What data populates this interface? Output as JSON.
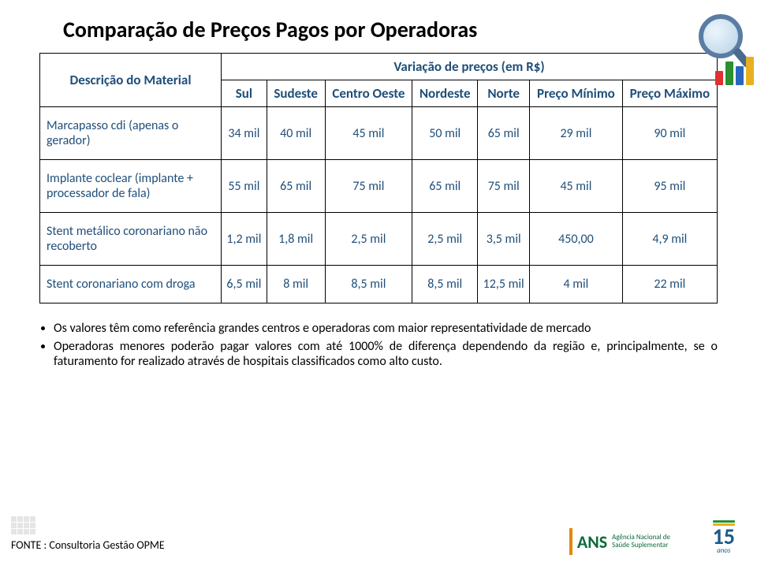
{
  "title": "Comparação de Preços Pagos por Operadoras",
  "table": {
    "desc_header": "Descrição do Material",
    "var_header": "Variação de preços (em R$)",
    "regions": [
      "Sul",
      "Sudeste",
      "Centro Oeste",
      "Nordeste",
      "Norte",
      "Preço Mínimo",
      "Preço Máximo"
    ],
    "rows": [
      {
        "desc": "Marcapasso cdi (apenas o gerador)",
        "vals": [
          "34 mil",
          "40 mil",
          "45 mil",
          "50 mil",
          "65 mil",
          "29 mil",
          "90 mil"
        ]
      },
      {
        "desc": "Implante coclear (implante + processador de fala)",
        "vals": [
          "55 mil",
          "65 mil",
          "75 mil",
          "65 mil",
          "75 mil",
          "45 mil",
          "95 mil"
        ]
      },
      {
        "desc": "Stent metálico coronariano não recoberto",
        "vals": [
          "1,2 mil",
          "1,8 mil",
          "2,5 mil",
          "2,5 mil",
          "3,5 mil",
          "450,00",
          "4,9 mil"
        ]
      },
      {
        "desc": "Stent coronariano com droga",
        "vals": [
          "6,5 mil",
          "8 mil",
          "8,5 mil",
          "8,5 mil",
          "12,5 mil",
          "4 mil",
          "22 mil"
        ]
      }
    ]
  },
  "bullets": [
    "Os valores têm como referência grandes centros e operadoras com maior representatividade de mercado",
    "Operadoras menores poderão pagar valores com até 1000% de diferença dependendo da região e, principalmente, se o faturamento for realizado através de hospitais classificados como alto custo."
  ],
  "footer_source": "FONTE : Consultoria Gestão OPME",
  "logo_ans": {
    "brand": "ANS",
    "line1": "Agência Nacional de",
    "line2": "Saúde Suplementar"
  },
  "logo_15": {
    "num": "15",
    "anos": "anos"
  },
  "decor_bars": [
    {
      "h": 18,
      "c": "#e03030"
    },
    {
      "h": 30,
      "c": "#2a9030"
    },
    {
      "h": 24,
      "c": "#2a65c0"
    },
    {
      "h": 36,
      "c": "#e8b020"
    }
  ],
  "colors": {
    "header_text": "#1f4e79",
    "cell_text": "#1f4e79"
  }
}
